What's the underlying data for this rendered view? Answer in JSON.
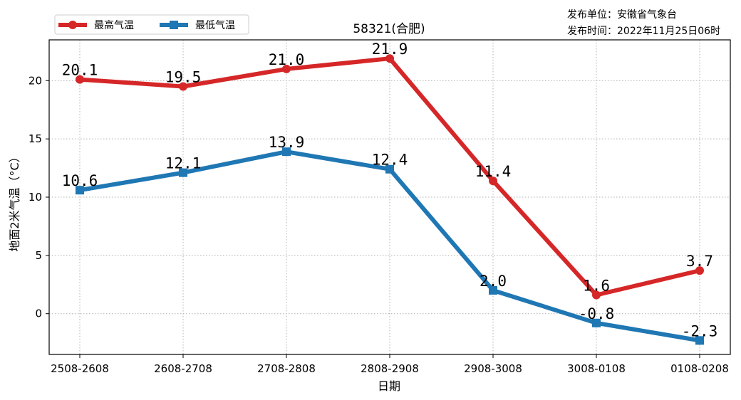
{
  "publish": {
    "unit_label": "发布单位：",
    "unit": "安徽省气象台",
    "time_label": "发布时间：",
    "time": "2022年11月25日06时"
  },
  "chart_data": {
    "type": "line",
    "title": "58321(合肥)",
    "xlabel": "日期",
    "ylabel": "地面2米气温（°C）",
    "categories": [
      "2508-2608",
      "2608-2708",
      "2708-2808",
      "2808-2908",
      "2908-3008",
      "3008-0108",
      "0108-0208"
    ],
    "ylim": [
      -3.5,
      23.5
    ],
    "yticks": [
      0,
      5,
      10,
      15,
      20
    ],
    "grid": true,
    "legend_position": "top-left",
    "series": [
      {
        "name": "最高气温",
        "color": "#d62728",
        "marker": "circle",
        "values": [
          20.1,
          19.5,
          21.0,
          21.9,
          11.4,
          1.6,
          3.7
        ],
        "labels": [
          "20.1",
          "19.5",
          "21.0",
          "21.9",
          "11.4",
          "1.6",
          "3.7"
        ]
      },
      {
        "name": "最低气温",
        "color": "#1f77b4",
        "marker": "square",
        "values": [
          10.6,
          12.1,
          13.9,
          12.4,
          2.0,
          -0.8,
          -2.3
        ],
        "labels": [
          "10.6",
          "12.1",
          "13.9",
          "12.4",
          "2.0",
          "-0.8",
          "-2.3"
        ]
      }
    ]
  }
}
